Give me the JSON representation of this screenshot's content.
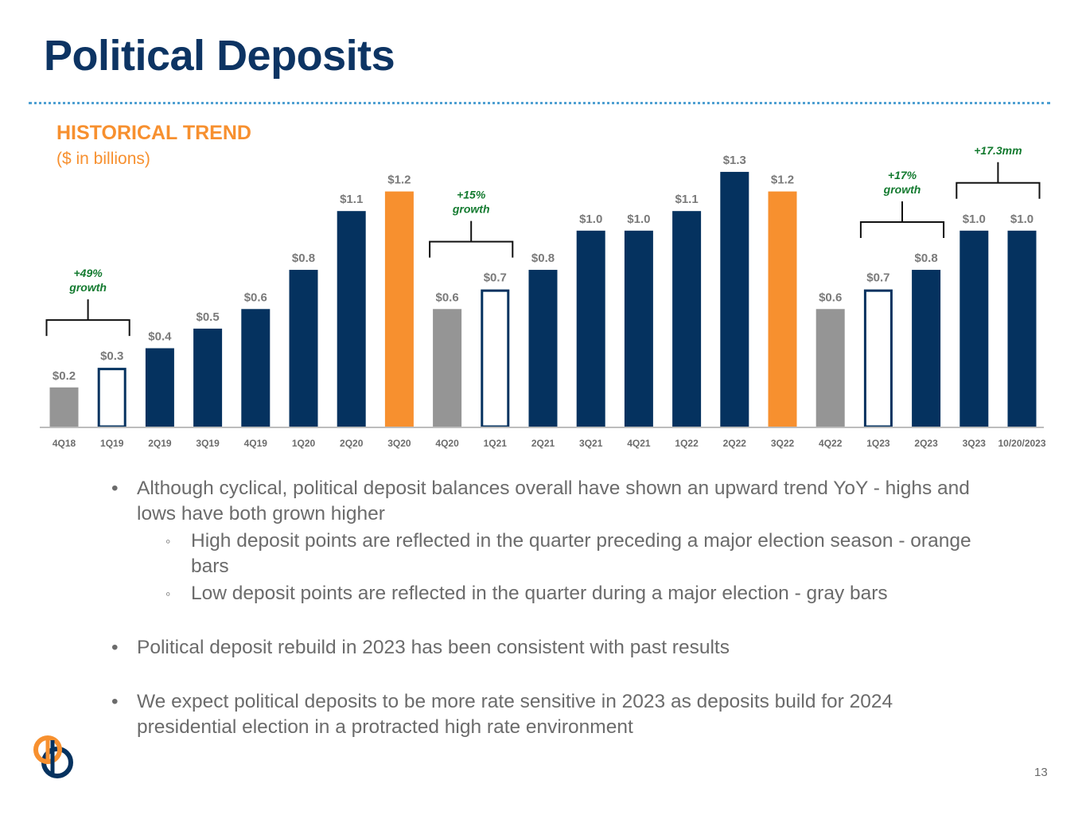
{
  "slide": {
    "title": "Political Deposits",
    "section_heading": "HISTORICAL TREND",
    "section_subheading": "($ in billions)",
    "page_number": "13"
  },
  "colors": {
    "title": "#0d3463",
    "accent_orange": "#f7902f",
    "navy_bar": "#05325f",
    "gray_bar": "#959595",
    "annotation_green": "#137a2f",
    "value_label_gray": "#7a7a7a",
    "rule_blue": "#4fa0d2"
  },
  "chart_data": {
    "type": "bar",
    "categories": [
      "4Q18",
      "1Q19",
      "2Q19",
      "3Q19",
      "4Q19",
      "1Q20",
      "2Q20",
      "3Q20",
      "4Q20",
      "1Q21",
      "2Q21",
      "3Q21",
      "4Q21",
      "1Q22",
      "2Q22",
      "3Q22",
      "4Q22",
      "1Q23",
      "2Q23",
      "3Q23",
      "10/20/2023"
    ],
    "values": [
      0.2,
      0.3,
      0.4,
      0.5,
      0.6,
      0.8,
      1.1,
      1.2,
      0.6,
      0.7,
      0.8,
      1.0,
      1.0,
      1.1,
      1.3,
      1.2,
      0.6,
      0.7,
      0.8,
      1.0,
      1.0
    ],
    "value_labels": [
      "$0.2",
      "$0.3",
      "$0.4",
      "$0.5",
      "$0.6",
      "$0.8",
      "$1.1",
      "$1.2",
      "$0.6",
      "$0.7",
      "$0.8",
      "$1.0",
      "$1.0",
      "$1.1",
      "$1.3",
      "$1.2",
      "$0.6",
      "$0.7",
      "$0.8",
      "$1.0",
      "$1.0"
    ],
    "bar_styles": [
      "gray",
      "outline",
      "navy",
      "navy",
      "navy",
      "navy",
      "navy",
      "orange",
      "gray",
      "outline",
      "navy",
      "navy",
      "navy",
      "navy",
      "navy",
      "orange",
      "gray",
      "outline",
      "navy",
      "navy",
      "navy"
    ],
    "ylim": [
      0,
      1.4
    ],
    "grid": false,
    "title": "",
    "xlabel": "",
    "ylabel": "",
    "annotations": [
      {
        "text": "+49% growth",
        "from_category": "4Q18",
        "to_category": "1Q19"
      },
      {
        "text": "+15% growth",
        "from_category": "4Q20",
        "to_category": "1Q21"
      },
      {
        "text": "+17% growth",
        "from_category": "1Q23",
        "to_category": "2Q23"
      },
      {
        "text": "+17.3mm",
        "from_category": "3Q23",
        "to_category": "10/20/2023"
      }
    ]
  },
  "bullets": [
    {
      "text": "Although cyclical, political deposit balances overall have shown an upward trend YoY - highs and lows have both grown higher",
      "sub": [
        "High deposit points are reflected in the quarter preceding a major election season - orange bars",
        "Low deposit points are reflected in the quarter during a major election - gray bars"
      ]
    },
    {
      "text": "Political deposit rebuild in 2023 has been consistent with past results",
      "sub": []
    },
    {
      "text": "We expect political deposits to be more rate sensitive in 2023 as deposits build for 2024 presidential election in a protracted high rate environment",
      "sub": []
    }
  ],
  "logo": {
    "icon": "bank-logo-icon"
  }
}
